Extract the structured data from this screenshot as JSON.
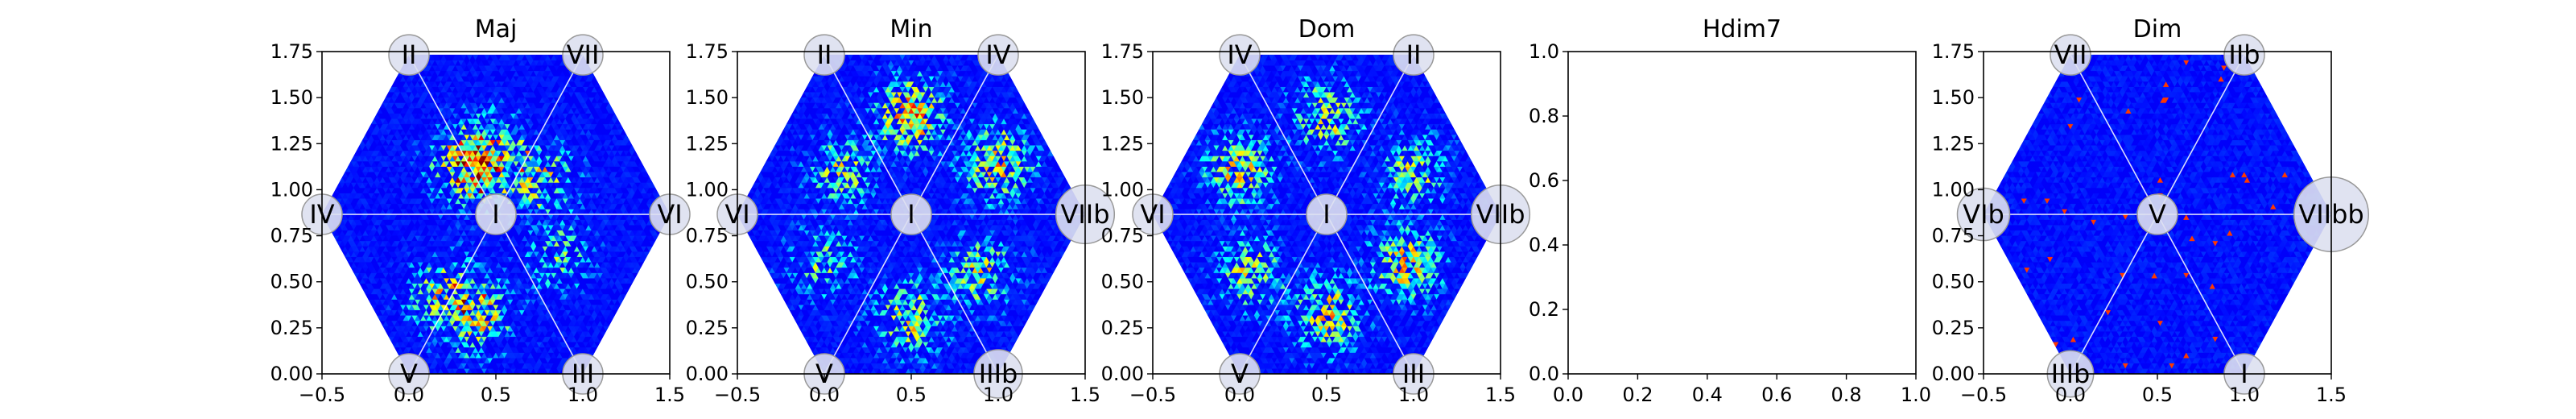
{
  "chart_data": [
    {
      "type": "heatmap",
      "title": "Maj",
      "xlim": [
        -0.5,
        1.5
      ],
      "ylim": [
        0.0,
        1.75
      ],
      "xticks": [
        "−0.5",
        "0.0",
        "0.5",
        "1.0",
        "1.5"
      ],
      "yticks": [
        "0.00",
        "0.25",
        "0.50",
        "0.75",
        "1.00",
        "1.25",
        "1.50",
        "1.75"
      ],
      "grid": false,
      "hexagon": true,
      "nodes": [
        {
          "label": "I",
          "x": 0.5,
          "y": 0.866,
          "r": 1.0
        },
        {
          "label": "II",
          "x": 0.0,
          "y": 1.732,
          "r": 1.0
        },
        {
          "label": "VII",
          "x": 1.0,
          "y": 1.732,
          "r": 1.0
        },
        {
          "label": "IV",
          "x": -0.5,
          "y": 0.866,
          "r": 1.0
        },
        {
          "label": "VI",
          "x": 1.5,
          "y": 0.866,
          "r": 1.0
        },
        {
          "label": "V",
          "x": 0.0,
          "y": 0.0,
          "r": 1.0
        },
        {
          "label": "III",
          "x": 1.0,
          "y": 0.0,
          "r": 1.0
        }
      ],
      "hotspots": [
        {
          "x": 0.35,
          "y": 1.12,
          "w": 1.0
        },
        {
          "x": 0.45,
          "y": 1.2,
          "w": 0.9
        },
        {
          "x": 0.75,
          "y": 1.05,
          "w": 0.8
        },
        {
          "x": 0.2,
          "y": 0.42,
          "w": 0.85
        },
        {
          "x": 0.4,
          "y": 0.32,
          "w": 0.9
        },
        {
          "x": 0.85,
          "y": 0.65,
          "w": 0.6
        }
      ],
      "intensity": 0.7,
      "seed": 11
    },
    {
      "type": "heatmap",
      "title": "Min",
      "xlim": [
        -0.5,
        1.5
      ],
      "ylim": [
        0.0,
        1.75
      ],
      "xticks": [
        "−0.5",
        "0.0",
        "0.5",
        "1.0",
        "1.5"
      ],
      "yticks": [
        "0.00",
        "0.25",
        "0.50",
        "0.75",
        "1.00",
        "1.25",
        "1.50",
        "1.75"
      ],
      "grid": false,
      "hexagon": true,
      "nodes": [
        {
          "label": "I",
          "x": 0.5,
          "y": 0.866,
          "r": 1.0
        },
        {
          "label": "II",
          "x": 0.0,
          "y": 1.732,
          "r": 1.0
        },
        {
          "label": "IV",
          "x": 1.0,
          "y": 1.732,
          "r": 1.0
        },
        {
          "label": "VI",
          "x": -0.5,
          "y": 0.866,
          "r": 1.0
        },
        {
          "label": "VIIb",
          "x": 1.5,
          "y": 0.866,
          "r": 1.45
        },
        {
          "label": "V",
          "x": 0.0,
          "y": 0.0,
          "r": 1.0
        },
        {
          "label": "IIIb",
          "x": 1.0,
          "y": 0.0,
          "r": 1.2
        }
      ],
      "hotspots": [
        {
          "x": 0.5,
          "y": 1.4,
          "w": 1.0
        },
        {
          "x": 1.0,
          "y": 1.15,
          "w": 0.9
        },
        {
          "x": 0.1,
          "y": 1.1,
          "w": 0.7
        },
        {
          "x": 0.9,
          "y": 0.55,
          "w": 0.75
        },
        {
          "x": 0.5,
          "y": 0.3,
          "w": 0.8
        },
        {
          "x": 0.0,
          "y": 0.6,
          "w": 0.6
        }
      ],
      "intensity": 0.85,
      "seed": 23
    },
    {
      "type": "heatmap",
      "title": "Dom",
      "xlim": [
        -0.5,
        1.5
      ],
      "ylim": [
        0.0,
        1.75
      ],
      "xticks": [
        "−0.5",
        "0.0",
        "0.5",
        "1.0",
        "1.5"
      ],
      "yticks": [
        "0.00",
        "0.25",
        "0.50",
        "0.75",
        "1.00",
        "1.25",
        "1.50",
        "1.75"
      ],
      "grid": false,
      "hexagon": true,
      "nodes": [
        {
          "label": "I",
          "x": 0.5,
          "y": 0.866,
          "r": 1.0
        },
        {
          "label": "IV",
          "x": 0.0,
          "y": 1.732,
          "r": 1.0
        },
        {
          "label": "II",
          "x": 1.0,
          "y": 1.732,
          "r": 1.0
        },
        {
          "label": "VI",
          "x": -0.5,
          "y": 0.866,
          "r": 1.0
        },
        {
          "label": "VIIb",
          "x": 1.5,
          "y": 0.866,
          "r": 1.45
        },
        {
          "label": "V",
          "x": 0.0,
          "y": 0.0,
          "r": 1.0
        },
        {
          "label": "III",
          "x": 1.0,
          "y": 0.0,
          "r": 1.0
        }
      ],
      "hotspots": [
        {
          "x": 0.0,
          "y": 1.1,
          "w": 0.85
        },
        {
          "x": 0.5,
          "y": 1.4,
          "w": 0.8
        },
        {
          "x": 1.0,
          "y": 1.1,
          "w": 0.7
        },
        {
          "x": 0.05,
          "y": 0.55,
          "w": 0.75
        },
        {
          "x": 0.5,
          "y": 0.32,
          "w": 0.85
        },
        {
          "x": 0.95,
          "y": 0.6,
          "w": 0.9
        }
      ],
      "intensity": 0.85,
      "seed": 37
    },
    {
      "type": "heatmap",
      "title": "Hdim7",
      "xlim": [
        0.0,
        1.0
      ],
      "ylim": [
        0.0,
        1.0
      ],
      "xticks": [
        "0.0",
        "0.2",
        "0.4",
        "0.6",
        "0.8",
        "1.0"
      ],
      "yticks": [
        "0.0",
        "0.2",
        "0.4",
        "0.6",
        "0.8",
        "1.0"
      ],
      "grid": false,
      "hexagon": false,
      "nodes": [],
      "hotspots": [],
      "intensity": 0,
      "seed": 0
    },
    {
      "type": "heatmap",
      "title": "Dim",
      "xlim": [
        -0.5,
        1.5
      ],
      "ylim": [
        0.0,
        1.75
      ],
      "xticks": [
        "−0.5",
        "0.0",
        "0.5",
        "1.0",
        "1.5"
      ],
      "yticks": [
        "0.00",
        "0.25",
        "0.50",
        "0.75",
        "1.00",
        "1.25",
        "1.50",
        "1.75"
      ],
      "grid": false,
      "hexagon": true,
      "nodes": [
        {
          "label": "V",
          "x": 0.5,
          "y": 0.866,
          "r": 1.0
        },
        {
          "label": "VII",
          "x": 0.0,
          "y": 1.732,
          "r": 1.0
        },
        {
          "label": "IIb",
          "x": 1.0,
          "y": 1.732,
          "r": 1.0
        },
        {
          "label": "VIb",
          "x": -0.5,
          "y": 0.866,
          "r": 1.3
        },
        {
          "label": "VIIbb",
          "x": 1.5,
          "y": 0.866,
          "r": 1.85
        },
        {
          "label": "IIIb",
          "x": 0.0,
          "y": 0.0,
          "r": 1.15
        },
        {
          "label": "I",
          "x": 1.0,
          "y": 0.0,
          "r": 1.0
        }
      ],
      "hotspots": [],
      "intensity": 0.05,
      "seed": 53
    }
  ]
}
